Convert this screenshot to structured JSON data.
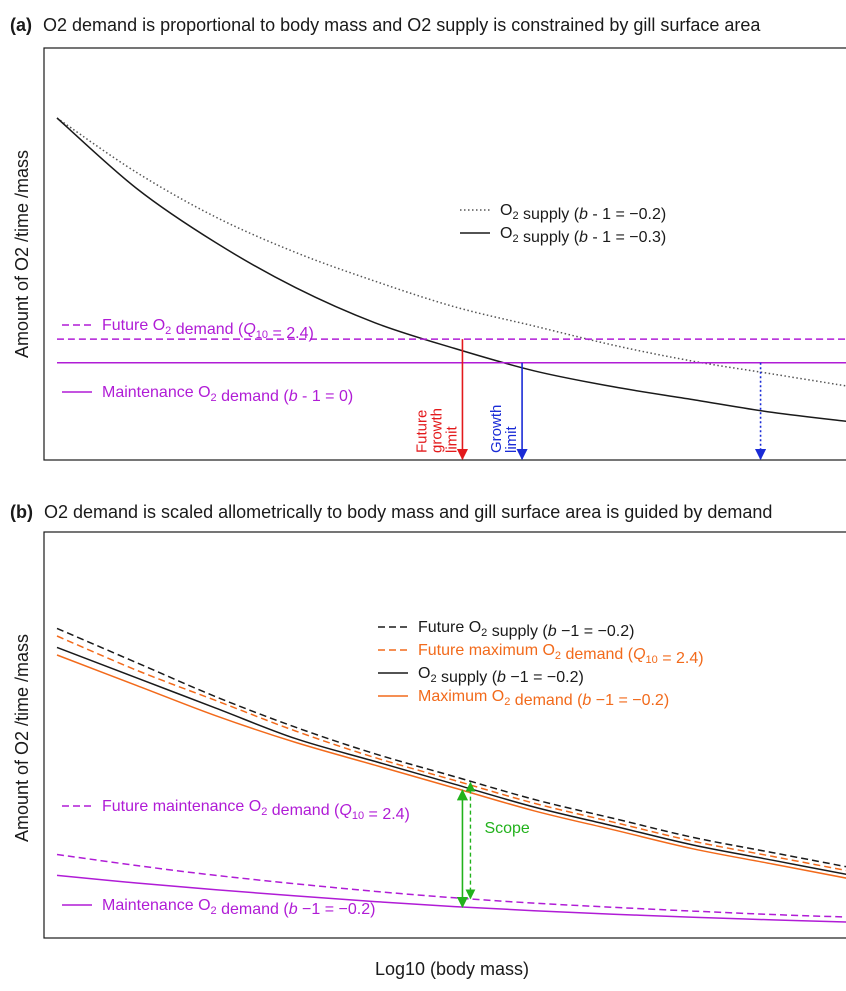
{
  "chart_data": [
    {
      "panel": "(a)",
      "type": "line",
      "title": "O2 demand is proportional to body mass and O2 supply is constrained by gill surface area",
      "ylabel": "Amount of O2 /time /mass",
      "xlabel": "",
      "ticks": "none",
      "grid": false,
      "legend_position": "upper-right and left",
      "x": [
        0,
        0.1,
        0.2,
        0.3,
        0.4,
        0.5,
        0.6,
        0.7,
        0.8,
        0.9,
        1.0
      ],
      "series": [
        {
          "name": "O2 supply (b - 1 = −0.2)",
          "color": "#555555",
          "dash": "dotted",
          "values": [
            1.0,
            0.83,
            0.69,
            0.58,
            0.49,
            0.41,
            0.35,
            0.29,
            0.24,
            0.2,
            0.16
          ]
        },
        {
          "name": "O2 supply (b - 1 = −0.3)",
          "color": "#1a1a1a",
          "dash": "solid",
          "values": [
            1.0,
            0.78,
            0.61,
            0.47,
            0.36,
            0.28,
            0.21,
            0.16,
            0.12,
            0.08,
            0.05
          ]
        },
        {
          "name": "Future O2 demand (Q10 = 2.4)",
          "color": "#b01cd6",
          "dash": "dashed",
          "values": [
            0.309,
            0.309,
            0.309,
            0.309,
            0.309,
            0.309,
            0.309,
            0.309,
            0.309,
            0.309,
            0.309
          ]
        },
        {
          "name": "Maintenance O2 demand (b - 1 = 0)",
          "color": "#b01cd6",
          "dash": "solid",
          "values": [
            0.235,
            0.235,
            0.235,
            0.235,
            0.235,
            0.235,
            0.235,
            0.235,
            0.235,
            0.235,
            0.235
          ]
        }
      ],
      "markers": [
        {
          "label": "Future growth limit",
          "lines": [
            "Future",
            "growth",
            "limit"
          ],
          "x": 0.51,
          "color": "#e31a1c",
          "style": "solid"
        },
        {
          "label": "Growth limit",
          "lines": [
            "Growth",
            "limit"
          ],
          "x": 0.585,
          "color": "#1a2bd6",
          "style": "solid"
        },
        {
          "label": "",
          "lines": [],
          "x": 0.885,
          "color": "#1a2bd6",
          "style": "dotted"
        }
      ]
    },
    {
      "panel": "(b)",
      "type": "line",
      "title": "O2 demand is scaled allometrically to body mass and gill surface area is guided by demand",
      "ylabel": "Amount of O2 /time /mass",
      "xlabel": "Log10 (body mass)",
      "ticks": "none",
      "grid": false,
      "legend_position": "upper-right and lower-left",
      "x": [
        0,
        0.1,
        0.2,
        0.3,
        0.4,
        0.5,
        0.6,
        0.7,
        0.8,
        0.9,
        1.0
      ],
      "series": [
        {
          "name": "Future O2 supply (b −1 = −0.2)",
          "color": "#1a1a1a",
          "dash": "dashed",
          "values": [
            0.82,
            0.73,
            0.64,
            0.56,
            0.49,
            0.43,
            0.37,
            0.32,
            0.27,
            0.23,
            0.19
          ]
        },
        {
          "name": "Future maximum O2 demand (Q10 = 2.4)",
          "color": "#f26a1b",
          "dash": "dashed",
          "values": [
            0.8,
            0.71,
            0.63,
            0.55,
            0.48,
            0.42,
            0.36,
            0.31,
            0.26,
            0.22,
            0.18
          ]
        },
        {
          "name": "O2 supply (b −1 = −0.2)",
          "color": "#1a1a1a",
          "dash": "solid",
          "values": [
            0.77,
            0.69,
            0.61,
            0.53,
            0.47,
            0.41,
            0.35,
            0.3,
            0.25,
            0.21,
            0.17
          ]
        },
        {
          "name": "Maximum O2 demand (b −1 = −0.2)",
          "color": "#f26a1b",
          "dash": "solid",
          "values": [
            0.75,
            0.67,
            0.59,
            0.52,
            0.46,
            0.4,
            0.34,
            0.29,
            0.24,
            0.2,
            0.16
          ]
        },
        {
          "name": "Future maintenance O2 demand (Q10 = 2.4)",
          "color": "#b01cd6",
          "dash": "dashed",
          "values": [
            0.225,
            0.196,
            0.17,
            0.148,
            0.128,
            0.111,
            0.097,
            0.086,
            0.076,
            0.067,
            0.06
          ]
        },
        {
          "name": "Maintenance O2 demand (b −1 = −0.2)",
          "color": "#b01cd6",
          "dash": "solid",
          "values": [
            0.17,
            0.15,
            0.132,
            0.116,
            0.101,
            0.088,
            0.077,
            0.068,
            0.06,
            0.053,
            0.047
          ]
        }
      ],
      "annotations": [
        {
          "label": "Scope",
          "x": 0.51,
          "color": "#22b21c"
        }
      ]
    }
  ]
}
